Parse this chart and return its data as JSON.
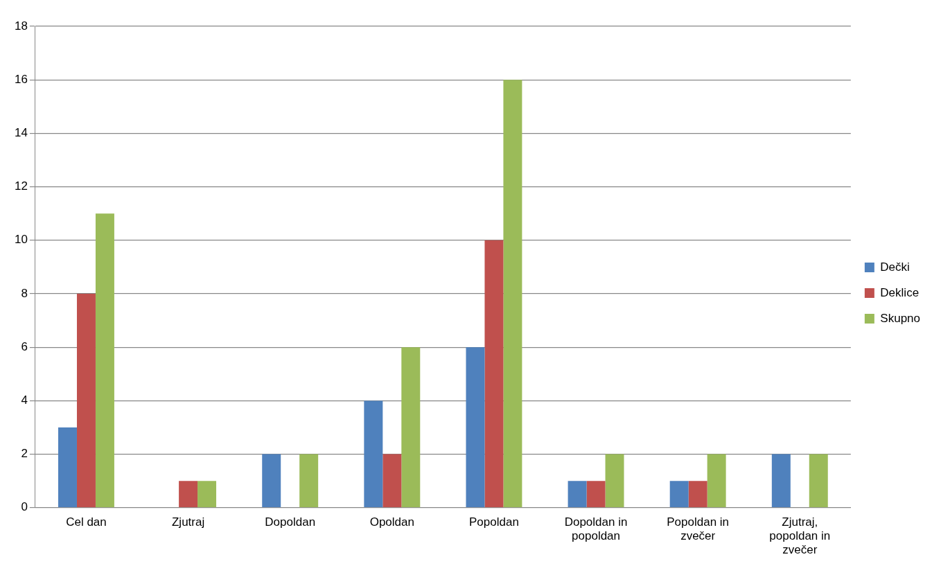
{
  "chart_data": {
    "type": "bar",
    "categories": [
      "Cel dan",
      "Zjutraj",
      "Dopoldan",
      "Opoldan",
      "Popoldan",
      "Dopoldan in popoldan",
      "Popoldan in zvečer",
      "Zjutraj, popoldan in zvečer"
    ],
    "series": [
      {
        "name": "Dečki",
        "color": "#4f81bd",
        "values": [
          3,
          0,
          2,
          4,
          6,
          1,
          1,
          2
        ]
      },
      {
        "name": "Deklice",
        "color": "#c0504d",
        "values": [
          8,
          1,
          0,
          2,
          10,
          1,
          1,
          0
        ]
      },
      {
        "name": "Skupno",
        "color": "#9bbb59",
        "values": [
          11,
          1,
          2,
          6,
          16,
          2,
          2,
          2
        ]
      }
    ],
    "ylim": [
      0,
      18
    ],
    "yticks": [
      0,
      2,
      4,
      6,
      8,
      10,
      12,
      14,
      16,
      18
    ],
    "grid": "y",
    "legend": "right"
  }
}
